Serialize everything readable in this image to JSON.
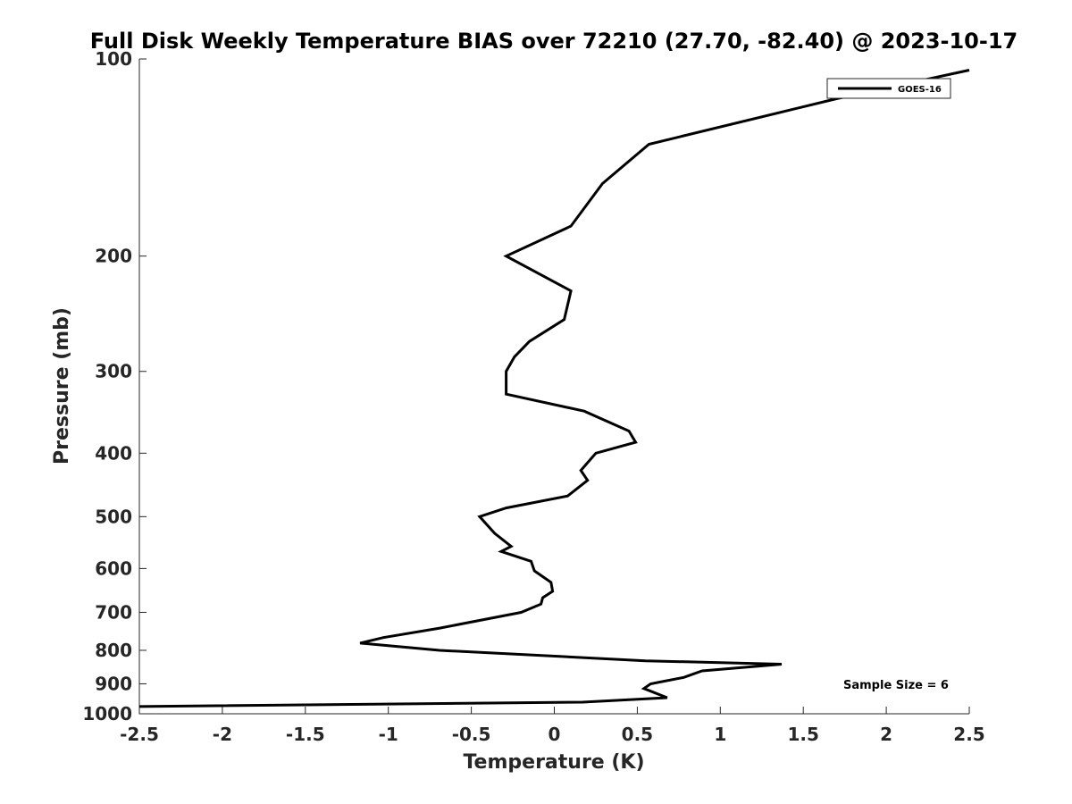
{
  "chart_data": {
    "type": "line",
    "title": "Full Disk Weekly Temperature BIAS over 72210 (27.70, -82.40) @ 2023-10-17",
    "xlabel": "Temperature (K)",
    "ylabel": "Pressure (mb)",
    "xlim": [
      -2.5,
      2.5
    ],
    "ylim": [
      100,
      1000
    ],
    "y_scale": "log",
    "y_reversed": true,
    "grid": false,
    "legend_position": "top-right",
    "x_ticks": [
      -2.5,
      -2,
      -1.5,
      -1,
      -0.5,
      0,
      0.5,
      1,
      1.5,
      2,
      2.5
    ],
    "x_tick_labels": [
      "-2.5",
      "-2",
      "-1.5",
      "-1",
      "-0.5",
      "0",
      "0.5",
      "1",
      "1.5",
      "2",
      "2.5"
    ],
    "y_ticks": [
      100,
      200,
      300,
      400,
      500,
      600,
      700,
      800,
      900,
      1000
    ],
    "y_tick_labels": [
      "100",
      "200",
      "300",
      "400",
      "500",
      "600",
      "700",
      "800",
      "900",
      "1000"
    ],
    "series": [
      {
        "name": "GOES-16",
        "color": "#000000",
        "points": [
          [
            2.5,
            104
          ],
          [
            1.7,
            115
          ],
          [
            0.57,
            135
          ],
          [
            0.29,
            155
          ],
          [
            0.1,
            180
          ],
          [
            -0.29,
            200
          ],
          [
            0.1,
            226
          ],
          [
            0.06,
            250
          ],
          [
            -0.15,
            270
          ],
          [
            -0.24,
            285
          ],
          [
            -0.29,
            300
          ],
          [
            -0.29,
            325
          ],
          [
            0.18,
            345
          ],
          [
            0.45,
            370
          ],
          [
            0.49,
            385
          ],
          [
            0.25,
            400
          ],
          [
            0.16,
            425
          ],
          [
            0.2,
            440
          ],
          [
            0.08,
            465
          ],
          [
            -0.29,
            485
          ],
          [
            -0.45,
            500
          ],
          [
            -0.36,
            530
          ],
          [
            -0.26,
            555
          ],
          [
            -0.32,
            565
          ],
          [
            -0.14,
            585
          ],
          [
            -0.12,
            605
          ],
          [
            -0.02,
            630
          ],
          [
            -0.01,
            650
          ],
          [
            -0.07,
            665
          ],
          [
            -0.08,
            680
          ],
          [
            -0.2,
            700
          ],
          [
            -0.69,
            740
          ],
          [
            -1.03,
            765
          ],
          [
            -1.17,
            780
          ],
          [
            -0.69,
            800
          ],
          [
            0.55,
            830
          ],
          [
            1.37,
            840
          ],
          [
            0.89,
            860
          ],
          [
            0.78,
            880
          ],
          [
            0.58,
            900
          ],
          [
            0.54,
            915
          ],
          [
            0.68,
            945
          ],
          [
            0.17,
            960
          ],
          [
            -2.5,
            975
          ]
        ]
      }
    ],
    "annotation": "Sample Size = 6"
  }
}
